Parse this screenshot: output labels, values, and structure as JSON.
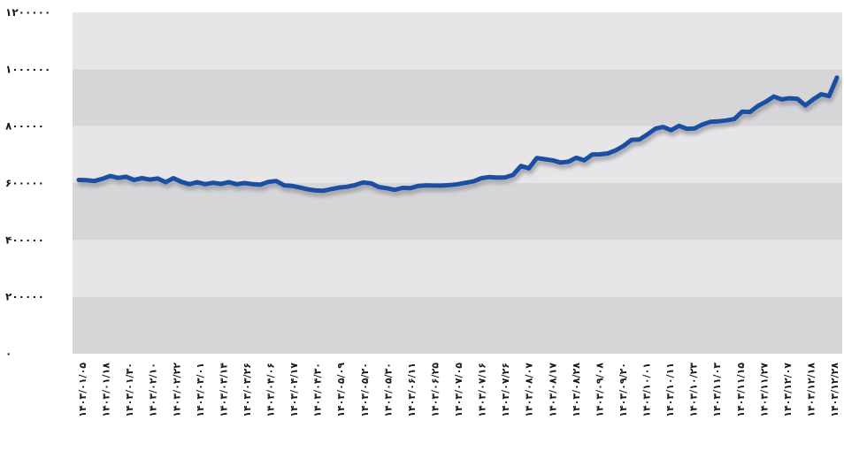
{
  "chart_data": {
    "type": "line",
    "title": "",
    "xlabel": "",
    "ylabel": "",
    "ylim": [
      0,
      1200000
    ],
    "grid": "horizontal alternating bands",
    "legend": "none",
    "colors": {
      "line": "#1b4fa3",
      "band_light": "#e6e6e9",
      "band_dark": "#d6d6d9",
      "shadow": "#9a9aa0",
      "text": "#1a1a1a"
    },
    "y_ticks": [
      {
        "value": 0,
        "label": "۰"
      },
      {
        "value": 200000,
        "label": "۲۰۰۰۰۰"
      },
      {
        "value": 400000,
        "label": "۴۰۰۰۰۰"
      },
      {
        "value": 600000,
        "label": "۶۰۰۰۰۰"
      },
      {
        "value": 800000,
        "label": "۸۰۰۰۰۰"
      },
      {
        "value": 1000000,
        "label": "۱۰۰۰۰۰۰"
      },
      {
        "value": 1200000,
        "label": "۱۲۰۰۰۰۰"
      }
    ],
    "x_tick_labels": [
      "۱۴۰۳/۰۱/۰۵",
      "۱۴۰۳/۰۱/۱۸",
      "۱۴۰۳/۰۱/۳۰",
      "۱۴۰۳/۰۲/۱۰",
      "۱۴۰۳/۰۲/۲۲",
      "۱۴۰۳/۰۳/۰۱",
      "۱۴۰۳/۰۳/۱۴",
      "۱۴۰۳/۰۳/۲۶",
      "۱۴۰۳/۰۴/۰۶",
      "۱۴۰۳/۰۴/۱۷",
      "۱۴۰۳/۰۴/۳۰",
      "۱۴۰۳/۰۵/۰۹",
      "۱۴۰۳/۰۵/۲۰",
      "۱۴۰۳/۰۵/۳۰",
      "۱۴۰۳/۰۶/۱۱",
      "۱۴۰۳/۰۶/۲۵",
      "۱۴۰۳/۰۷/۰۵",
      "۱۴۰۳/۰۷/۱۶",
      "۱۴۰۳/۰۷/۲۶",
      "۱۴۰۳/۰۸/۰۷",
      "۱۴۰۳/۰۸/۱۷",
      "۱۴۰۳/۰۸/۲۸",
      "۱۴۰۳/۰۹/۰۸",
      "۱۴۰۳/۰۹/۲۰",
      "۱۴۰۳/۱۰/۰۱",
      "۱۴۰۳/۱۰/۱۱",
      "۱۴۰۳/۱۰/۲۳",
      "۱۴۰۳/۱۱/۰۳",
      "۱۴۰۳/۱۱/۱۵",
      "۱۴۰۳/۱۱/۲۷",
      "۱۴۰۳/۱۲/۰۷",
      "۱۴۰۳/۱۲/۱۸",
      "۱۴۰۳/۱۲/۲۸"
    ],
    "series": [
      {
        "values": [
          611000,
          610000,
          607000,
          615000,
          625000,
          618000,
          622000,
          611000,
          617000,
          612000,
          616000,
          603000,
          617000,
          604000,
          596000,
          603000,
          596000,
          601000,
          597000,
          603000,
          596000,
          600000,
          596000,
          594000,
          604000,
          607000,
          592000,
          590000,
          584000,
          578000,
          574000,
          573000,
          579000,
          584000,
          587000,
          593000,
          602000,
          599000,
          586000,
          582000,
          576000,
          583000,
          582000,
          590000,
          592000,
          591000,
          591000,
          593000,
          596000,
          601000,
          606000,
          617000,
          621000,
          619000,
          620000,
          629000,
          660000,
          652000,
          688000,
          684000,
          680000,
          672000,
          675000,
          689000,
          680000,
          700000,
          701000,
          704000,
          715000,
          731000,
          752000,
          753000,
          771000,
          791000,
          797000,
          786000,
          801000,
          791000,
          792000,
          806000,
          815000,
          817000,
          820000,
          825000,
          851000,
          850000,
          871000,
          886000,
          904000,
          894000,
          898000,
          896000,
          873000,
          894000,
          912000,
          906000,
          971000
        ]
      }
    ]
  }
}
